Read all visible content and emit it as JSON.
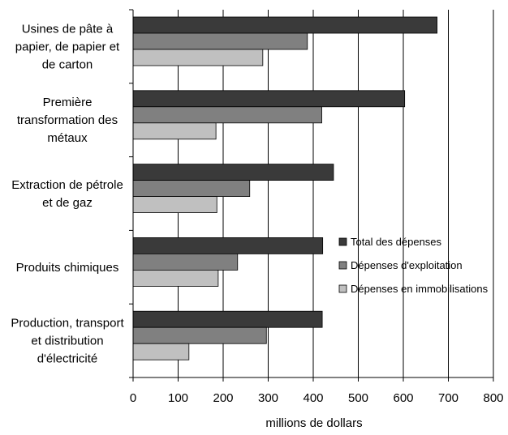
{
  "chart_data": {
    "type": "bar",
    "orientation": "horizontal",
    "categories": [
      [
        "Usines de pâte à",
        "papier, de papier et",
        "de carton"
      ],
      [
        "Première",
        "transformation des",
        "métaux"
      ],
      [
        "Extraction de pétrole",
        "et de gaz"
      ],
      [
        "Produits chimiques"
      ],
      [
        "Production, transport",
        "et distribution",
        "d'électricité"
      ]
    ],
    "series": [
      {
        "name": "Total des dépenses",
        "color": "#3a3a3a",
        "values": [
          675,
          603,
          445,
          421,
          420
        ]
      },
      {
        "name": "Dépenses d'exploitation",
        "color": "#808080",
        "values": [
          387,
          419,
          259,
          232,
          296
        ]
      },
      {
        "name": "Dépenses en immobilisations",
        "color": "#c0c0c0",
        "values": [
          288,
          184,
          186,
          189,
          124
        ]
      }
    ],
    "xlabel": "millions de dollars",
    "xlim": [
      0,
      800
    ],
    "xticks": [
      0,
      100,
      200,
      300,
      400,
      500,
      600,
      700,
      800
    ],
    "grid": "vertical",
    "legend_position": "right"
  }
}
